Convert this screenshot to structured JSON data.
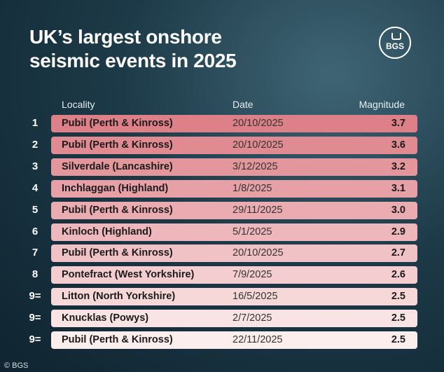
{
  "header": {
    "title": "UK’s largest onshore seismic events in 2025",
    "logo": "BGS"
  },
  "table": {
    "columns": [
      "Locality",
      "Date",
      "Magnitude"
    ],
    "rows": [
      [
        "1",
        "Pubil (Perth & Kinross)",
        "20/10/2025",
        "3.7"
      ],
      [
        "2",
        "Pubil (Perth & Kinross)",
        "20/10/2025",
        "3.6"
      ],
      [
        "3",
        "Silverdale (Lancashire)",
        "3/12/2025",
        "3.2"
      ],
      [
        "4",
        "Inchlaggan (Highland)",
        "1/8/2025",
        "3.1"
      ],
      [
        "5",
        "Pubil (Perth & Kinross)",
        "29/11/2025",
        "3.0"
      ],
      [
        "6",
        "Kinloch (Highland)",
        "5/1/2025",
        "2.9"
      ],
      [
        "7",
        "Pubil (Perth & Kinross)",
        "20/10/2025",
        "2.7"
      ],
      [
        "8",
        "Pontefract (West Yorkshire)",
        "7/9/2025",
        "2.6"
      ],
      [
        "9=",
        "Litton (North Yorkshire)",
        "16/5/2025",
        "2.5"
      ],
      [
        "9=",
        "Knucklas (Powys)",
        "2/7/2025",
        "2.5"
      ],
      [
        "9=",
        "Pubil (Perth & Kinross)",
        "22/11/2025",
        "2.5"
      ]
    ]
  },
  "footer": {
    "credit": "© BGS"
  }
}
